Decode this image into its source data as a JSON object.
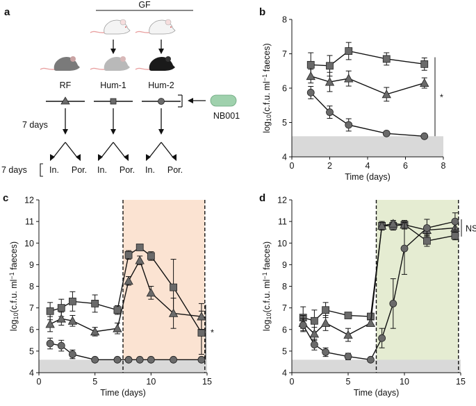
{
  "panel_a": {
    "letter": "a",
    "gf_label": "GF",
    "mouse_labels": [
      "RF",
      "Hum-1",
      "Hum-2"
    ],
    "strain_label": "NB001",
    "days_label_1": "7 days",
    "days_label_2": "7 days",
    "branch_labels": [
      "In.",
      "Por."
    ],
    "colors": {
      "mouse_rf": "#7a7a7a",
      "mouse_hum1": "#b9b9b9",
      "mouse_hum2": "#1a1a1a",
      "mouse_gf": "#f4f4f4",
      "bacterium": "#9fd1ad"
    }
  },
  "chart_data": [
    {
      "panel": "b",
      "type": "line",
      "xlabel": "Time (days)",
      "ylabel": "log10(c.f.u. ml−1 faeces)",
      "ylabel_parts": {
        "main": "log",
        "sub": "10",
        "mid": "(c.f.u. ml",
        "sup": "−1",
        "end": " faeces)"
      },
      "xlim": [
        0,
        8
      ],
      "ylim": [
        4,
        8
      ],
      "xticks": [
        0,
        2,
        4,
        6,
        8
      ],
      "yticks": [
        4,
        5,
        6,
        7,
        8
      ],
      "detection_limit": 4.6,
      "significance": "*",
      "series": [
        {
          "marker": "square",
          "x": [
            1,
            2,
            3,
            5,
            7
          ],
          "y": [
            6.68,
            6.65,
            7.08,
            6.85,
            6.7
          ],
          "err": [
            0.35,
            0.3,
            0.25,
            0.18,
            0.18
          ]
        },
        {
          "marker": "triangle",
          "x": [
            1,
            2,
            3,
            5,
            7
          ],
          "y": [
            6.35,
            6.18,
            6.28,
            5.82,
            6.15
          ],
          "err": [
            0.2,
            0.28,
            0.22,
            0.2,
            0.15
          ]
        },
        {
          "marker": "circle",
          "x": [
            1,
            2,
            3,
            5,
            7
          ],
          "y": [
            5.87,
            5.3,
            4.93,
            4.68,
            4.6
          ],
          "err": [
            0.18,
            0.18,
            0.18,
            0.05,
            0.0
          ]
        }
      ]
    },
    {
      "panel": "c",
      "type": "line",
      "xlabel": "Time (days)",
      "ylabel": "log10(c.f.u. ml−1 faeces)",
      "ylabel_parts": {
        "main": "log",
        "sub": "10",
        "mid": "(c.f.u. ml",
        "sup": "−1",
        "end": " faeces)"
      },
      "xlim": [
        0,
        15
      ],
      "ylim": [
        4,
        12
      ],
      "xticks": [
        0,
        5,
        10,
        15
      ],
      "yticks": [
        4,
        5,
        6,
        7,
        8,
        9,
        10,
        11,
        12
      ],
      "detection_limit": 4.6,
      "shaded_interval": [
        7.5,
        14.8
      ],
      "shade_color": "#fbe3d2",
      "significance": "*",
      "series": [
        {
          "marker": "square",
          "x": [
            1,
            2,
            3,
            5,
            7,
            8,
            9,
            10,
            12,
            14.5
          ],
          "y": [
            6.85,
            7.0,
            7.3,
            7.2,
            6.9,
            9.45,
            9.8,
            9.4,
            7.95,
            5.85
          ],
          "err": [
            0.4,
            0.4,
            0.45,
            0.4,
            0.2,
            0.2,
            0.1,
            0.2,
            1.3,
            1.0
          ]
        },
        {
          "marker": "triangle",
          "x": [
            1,
            2,
            3,
            5,
            7,
            8,
            9,
            10,
            12,
            14.5
          ],
          "y": [
            6.25,
            6.5,
            6.4,
            5.9,
            6.05,
            8.25,
            9.2,
            7.7,
            6.75,
            6.6
          ],
          "err": [
            0.35,
            0.3,
            0.25,
            0.2,
            0.25,
            0.2,
            0.2,
            0.3,
            0.7,
            0.6
          ]
        },
        {
          "marker": "circle",
          "x": [
            1,
            2,
            3,
            5,
            7,
            8,
            9,
            10,
            12,
            14.5
          ],
          "y": [
            5.35,
            5.25,
            4.85,
            4.6,
            4.6,
            4.6,
            4.6,
            4.6,
            4.6,
            4.6
          ],
          "err": [
            0.25,
            0.25,
            0.2,
            0,
            0,
            0,
            0,
            0,
            0,
            0
          ]
        }
      ]
    },
    {
      "panel": "d",
      "type": "line",
      "xlabel": "Time (days)",
      "ylabel": "log10(c.f.u. ml−1 faeces)",
      "ylabel_parts": {
        "main": "log",
        "sub": "10",
        "mid": "(c.f.u. ml",
        "sup": "−1",
        "end": " faeces)"
      },
      "xlim": [
        0,
        15
      ],
      "ylim": [
        4,
        12
      ],
      "xticks": [
        0,
        5,
        10,
        15
      ],
      "yticks": [
        4,
        5,
        6,
        7,
        8,
        9,
        10,
        11,
        12
      ],
      "detection_limit": 4.6,
      "shaded_interval": [
        7.5,
        14.8
      ],
      "shade_color": "#e5ecd2",
      "significance": "NS",
      "series": [
        {
          "marker": "square",
          "x": [
            1,
            2,
            3,
            5,
            7,
            8,
            9,
            10,
            12,
            14.5
          ],
          "y": [
            6.55,
            6.4,
            6.9,
            6.65,
            6.6,
            10.8,
            10.8,
            10.85,
            10.1,
            10.35
          ],
          "err": [
            0.5,
            0.5,
            0.35,
            0.1,
            0.15,
            0.2,
            0.2,
            0.2,
            0.25,
            0.2
          ]
        },
        {
          "marker": "triangle",
          "x": [
            1,
            2,
            3,
            5,
            7,
            8,
            9,
            10,
            12,
            14.5
          ],
          "y": [
            6.3,
            5.8,
            6.3,
            5.75,
            6.3,
            10.8,
            10.9,
            10.85,
            10.6,
            10.7
          ],
          "err": [
            0.35,
            0.3,
            0.35,
            0.3,
            0.15,
            0.15,
            0.15,
            0.15,
            0.2,
            0.2
          ]
        },
        {
          "marker": "circle",
          "x": [
            1,
            2,
            3,
            5,
            7,
            8,
            9,
            10,
            12,
            14.5
          ],
          "y": [
            6.2,
            5.3,
            4.95,
            4.75,
            4.6,
            5.6,
            7.2,
            9.75,
            10.7,
            11.0
          ],
          "err": [
            0.3,
            0.25,
            0.2,
            0.15,
            0,
            0.45,
            1.15,
            1.2,
            0.4,
            0.4
          ]
        }
      ]
    }
  ],
  "panel_letters": [
    "b",
    "c",
    "d"
  ]
}
